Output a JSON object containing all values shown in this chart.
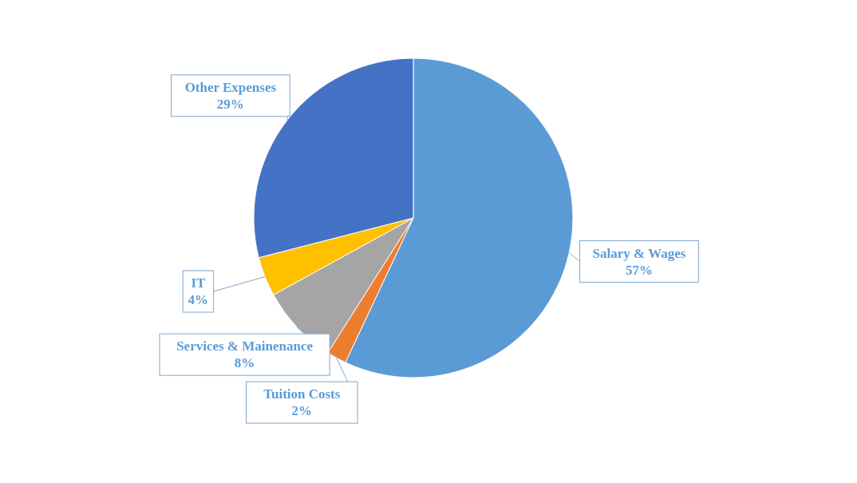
{
  "chart_data": {
    "type": "pie",
    "categories": [
      "Salary & Wages",
      "Tuition Costs",
      "Services & Mainenance",
      "IT",
      "Other Expenses"
    ],
    "values": [
      57,
      2,
      8,
      4,
      29
    ],
    "value_labels": [
      "57%",
      "2%",
      "8%",
      "4%",
      "29%"
    ],
    "colors": [
      "#5b9bd5",
      "#ed7d31",
      "#a5a5a5",
      "#ffc000",
      "#4472c4"
    ],
    "legend": false
  }
}
